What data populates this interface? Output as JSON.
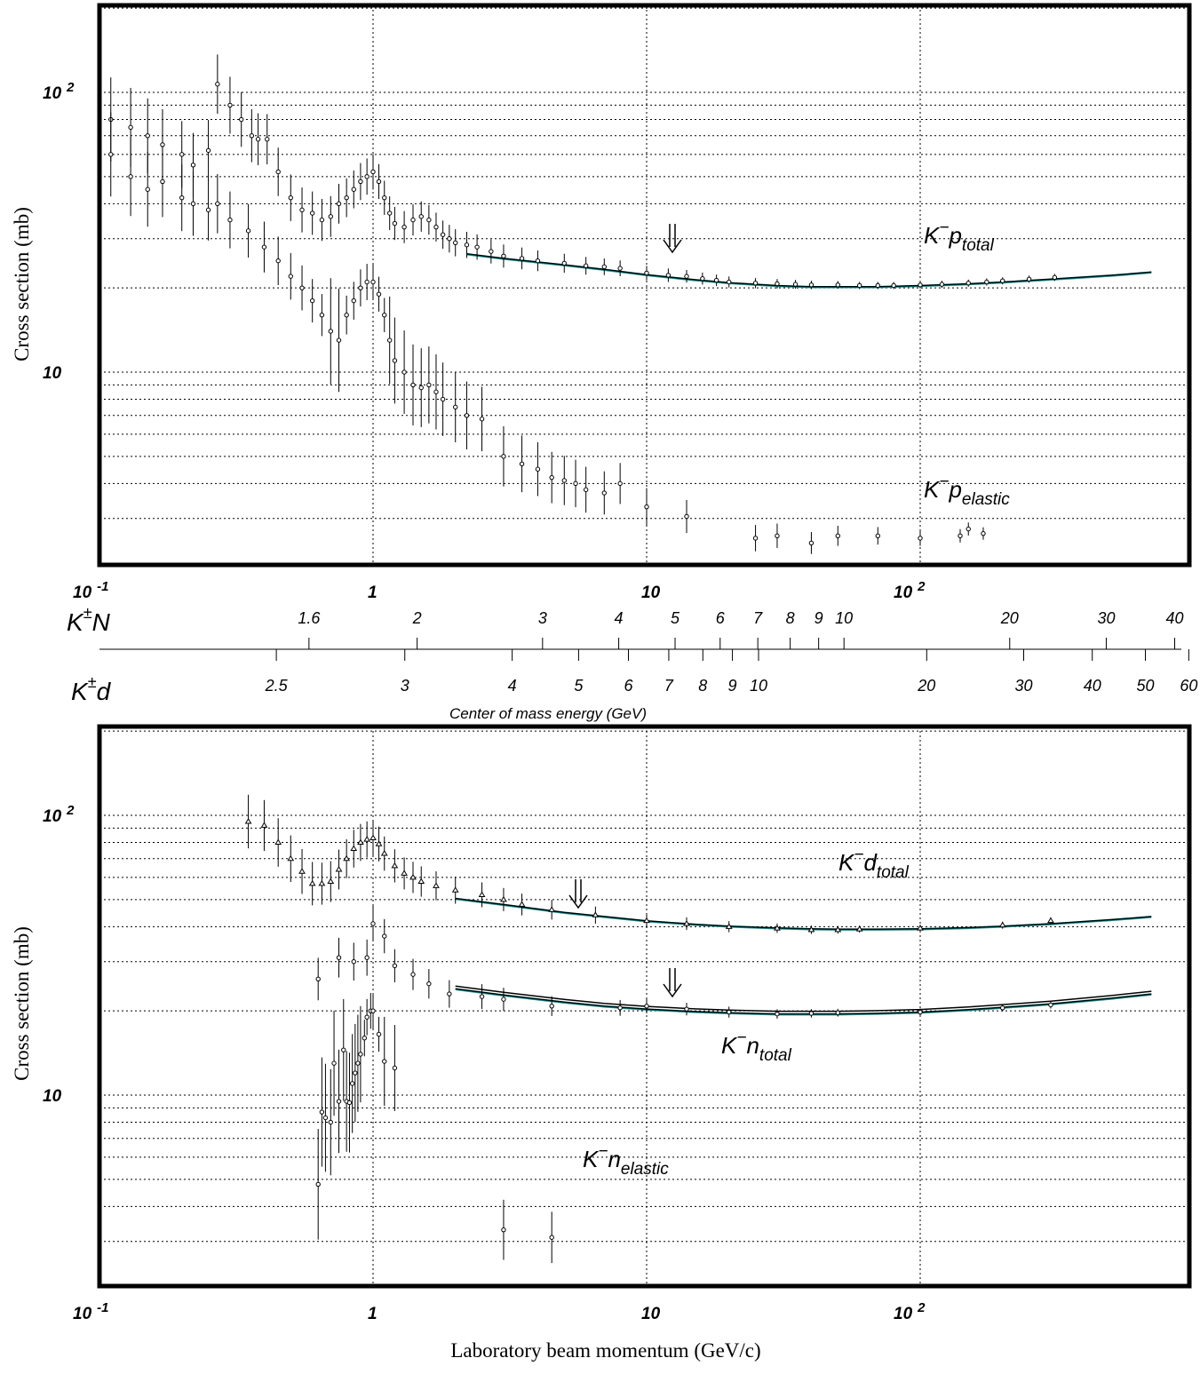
{
  "axis_labels": {
    "y_top": "Cross section (mb)",
    "y_bottom": "Cross section (mb)",
    "x_bottom": "Laboratory beam momentum (GeV/c)",
    "cms_title": "Center of mass energy (GeV)"
  },
  "x_tick_labels": [
    {
      "value": 0.1,
      "base": "10",
      "exp": "-1"
    },
    {
      "value": 1,
      "base": "1",
      "exp": ""
    },
    {
      "value": 10,
      "base": "10",
      "exp": ""
    },
    {
      "value": 100,
      "base": "10",
      "exp": "2"
    }
  ],
  "y_tick_labels": [
    {
      "value": 10,
      "base": "10",
      "exp": ""
    },
    {
      "value": 100,
      "base": "10",
      "exp": "2"
    }
  ],
  "cms_scales": [
    {
      "name_base": "K",
      "name_sup": "±",
      "name_tail": "N",
      "labels": [
        "1.6",
        "2",
        "3",
        "4",
        "5",
        "6",
        "7",
        "8",
        "9",
        "10",
        "20",
        "30",
        "40"
      ]
    },
    {
      "name_base": "K",
      "name_sup": "±",
      "name_tail": "d",
      "labels": [
        "2.5",
        "3",
        "4",
        "5",
        "6",
        "7",
        "8",
        "9",
        "10",
        "20",
        "30",
        "40",
        "50",
        "60"
      ]
    }
  ],
  "annotations": {
    "top_total": {
      "base": "K",
      "sup": "−",
      "main": "p",
      "sub": "total"
    },
    "top_elastic": {
      "base": "K",
      "sup": "−",
      "main": "p",
      "sub": "elastic"
    },
    "bottom_d_total": {
      "base": "K",
      "sup": "−",
      "main": "d",
      "sub": "total"
    },
    "bottom_n_total": {
      "base": "K",
      "sup": "−",
      "main": "n",
      "sub": "total"
    },
    "bottom_n_elastic": {
      "base": "K",
      "sup": "−",
      "main": "n",
      "sub": "elastic"
    }
  },
  "colors": {
    "fit_main": "#000000",
    "fit_band": "#00a0a0",
    "grid": "#000000"
  },
  "chart_data": [
    {
      "type": "scatter",
      "title": "",
      "xlabel": "Laboratory beam momentum (GeV/c)",
      "ylabel": "Cross section (mb)",
      "xscale": "log",
      "yscale": "log",
      "xlim": [
        0.1,
        800
      ],
      "ylim": [
        2.3,
        200
      ],
      "grid": true,
      "series": [
        {
          "name": "K−p total",
          "x": [
            0.11,
            0.13,
            0.15,
            0.17,
            0.2,
            0.22,
            0.25,
            0.27,
            0.3,
            0.33,
            0.36,
            0.38,
            0.41,
            0.45,
            0.5,
            0.55,
            0.6,
            0.65,
            0.7,
            0.75,
            0.8,
            0.85,
            0.9,
            0.95,
            1.0,
            1.05,
            1.1,
            1.15,
            1.2,
            1.3,
            1.4,
            1.5,
            1.6,
            1.7,
            1.8,
            1.9,
            2.0,
            2.2,
            2.4,
            2.7,
            3.0,
            3.5,
            4.0,
            5.0,
            6.0,
            7.0,
            8.0,
            10,
            12,
            14,
            16,
            18,
            20,
            25,
            30,
            35,
            40,
            50,
            60,
            70,
            80,
            100,
            120,
            150,
            175,
            200,
            250,
            310
          ],
          "y": [
            80,
            75,
            70,
            65,
            60,
            55,
            62,
            107,
            90,
            80,
            70,
            68,
            68,
            52,
            42,
            38,
            37,
            35,
            36,
            40,
            42,
            45,
            48,
            50,
            52,
            48,
            42,
            37,
            34,
            33,
            35,
            36,
            35,
            33,
            31,
            30,
            29,
            28.5,
            28,
            27,
            26,
            25.5,
            25,
            24.5,
            24,
            23.8,
            23.5,
            22.6,
            22.2,
            22,
            21.6,
            21.3,
            21,
            20.8,
            20.7,
            20.6,
            20.5,
            20.5,
            20.4,
            20.4,
            20.4,
            20.5,
            20.6,
            20.8,
            21,
            21.2,
            21.5,
            21.8
          ]
        },
        {
          "name": "K−p elastic",
          "x": [
            0.11,
            0.13,
            0.15,
            0.17,
            0.2,
            0.22,
            0.25,
            0.27,
            0.3,
            0.35,
            0.4,
            0.45,
            0.5,
            0.55,
            0.6,
            0.65,
            0.7,
            0.75,
            0.8,
            0.85,
            0.9,
            0.95,
            1.0,
            1.05,
            1.1,
            1.15,
            1.2,
            1.3,
            1.4,
            1.5,
            1.6,
            1.7,
            1.8,
            2.0,
            2.2,
            2.5,
            3.0,
            3.5,
            4.0,
            4.5,
            5.0,
            5.5,
            6.0,
            7.0,
            8.0,
            10,
            14,
            25,
            30,
            40,
            50,
            70,
            100,
            140,
            150,
            170
          ],
          "y": [
            60,
            50,
            45,
            48,
            42,
            40,
            38,
            40,
            35,
            32,
            28,
            25,
            22,
            20,
            18,
            16,
            14,
            13,
            16,
            18,
            20,
            21,
            21,
            19,
            16,
            13,
            11,
            10,
            9,
            8.8,
            9,
            8.5,
            8,
            7.5,
            7,
            6.8,
            5.0,
            4.7,
            4.5,
            4.2,
            4.1,
            4.0,
            3.8,
            3.7,
            4.0,
            3.3,
            3.05,
            2.55,
            2.6,
            2.45,
            2.6,
            2.6,
            2.55,
            2.6,
            2.75,
            2.65
          ]
        },
        {
          "name": "K−p total fit",
          "x": [
            2.2,
            3,
            5,
            7,
            10,
            15,
            20,
            30,
            40,
            50,
            70,
            100,
            150,
            200,
            300,
            500,
            700
          ],
          "y": [
            26.5,
            25.5,
            24.2,
            23.3,
            22.3,
            21.4,
            20.9,
            20.4,
            20.2,
            20.2,
            20.2,
            20.4,
            20.7,
            21.0,
            21.5,
            22.2,
            22.8
          ]
        }
      ]
    },
    {
      "type": "scatter",
      "title": "",
      "xlabel": "Laboratory beam momentum (GeV/c)",
      "ylabel": "Cross section (mb)",
      "xscale": "log",
      "yscale": "log",
      "xlim": [
        0.1,
        800
      ],
      "ylim": [
        2.3,
        200
      ],
      "grid": true,
      "series": [
        {
          "name": "K−d total",
          "x": [
            0.35,
            0.4,
            0.45,
            0.5,
            0.55,
            0.6,
            0.65,
            0.7,
            0.75,
            0.8,
            0.85,
            0.9,
            0.95,
            1.0,
            1.05,
            1.1,
            1.2,
            1.3,
            1.4,
            1.5,
            1.7,
            2.0,
            2.5,
            3.0,
            3.5,
            4.5,
            6.5,
            10,
            14,
            20,
            30,
            40,
            50,
            60,
            100,
            200,
            300
          ],
          "y": [
            95,
            92,
            80,
            70,
            63,
            57,
            57,
            58,
            64,
            70,
            76,
            80,
            82,
            83,
            79,
            73,
            66,
            62,
            60,
            58,
            56,
            54,
            52,
            50,
            48,
            46,
            44,
            42,
            41,
            40,
            39.5,
            39,
            39,
            39.2,
            39.5,
            40.5,
            42
          ]
        },
        {
          "name": "K−d total fit",
          "x": [
            2,
            3,
            5,
            7,
            10,
            15,
            20,
            30,
            40,
            50,
            70,
            100,
            150,
            200,
            300,
            500,
            700
          ],
          "y": [
            50.5,
            48,
            45,
            43.5,
            42,
            40.8,
            40.2,
            39.6,
            39.3,
            39.2,
            39.2,
            39.3,
            39.7,
            40.2,
            41,
            42.4,
            43.5
          ]
        },
        {
          "name": "K−n total",
          "x": [
            0.63,
            0.75,
            0.85,
            0.95,
            1.0,
            1.1,
            1.2,
            1.4,
            1.6,
            1.9,
            2.5,
            3.0,
            4.5,
            8,
            10,
            14,
            20,
            30,
            40,
            50,
            100,
            200,
            300
          ],
          "y": [
            26,
            31,
            30,
            31,
            41,
            37,
            29,
            27,
            25,
            23,
            22.5,
            22,
            20.8,
            20.5,
            20.8,
            20.3,
            19.8,
            19.5,
            19.6,
            19.7,
            19.8,
            20.5,
            21
          ]
        },
        {
          "name": "K−n total fit",
          "x": [
            2,
            3,
            5,
            7,
            10,
            15,
            20,
            30,
            40,
            50,
            70,
            100,
            150,
            200,
            300,
            500,
            700
          ],
          "y": [
            24,
            22.8,
            21.5,
            20.8,
            20.3,
            19.9,
            19.7,
            19.5,
            19.5,
            19.5,
            19.6,
            19.8,
            20.2,
            20.6,
            21.2,
            22.2,
            23
          ]
        },
        {
          "name": "K−n elastic",
          "x": [
            0.63,
            0.65,
            0.67,
            0.7,
            0.72,
            0.75,
            0.78,
            0.8,
            0.82,
            0.84,
            0.86,
            0.88,
            0.9,
            0.93,
            0.95,
            0.98,
            1.0,
            1.05,
            1.1,
            1.2,
            3.0,
            4.5
          ],
          "y": [
            4.8,
            8.7,
            8.3,
            8.0,
            13,
            9.5,
            14.5,
            9.5,
            9.4,
            11,
            12,
            13,
            14,
            16,
            19,
            20,
            20,
            16.5,
            13.2,
            12.5,
            3.3,
            3.1
          ]
        }
      ]
    }
  ]
}
